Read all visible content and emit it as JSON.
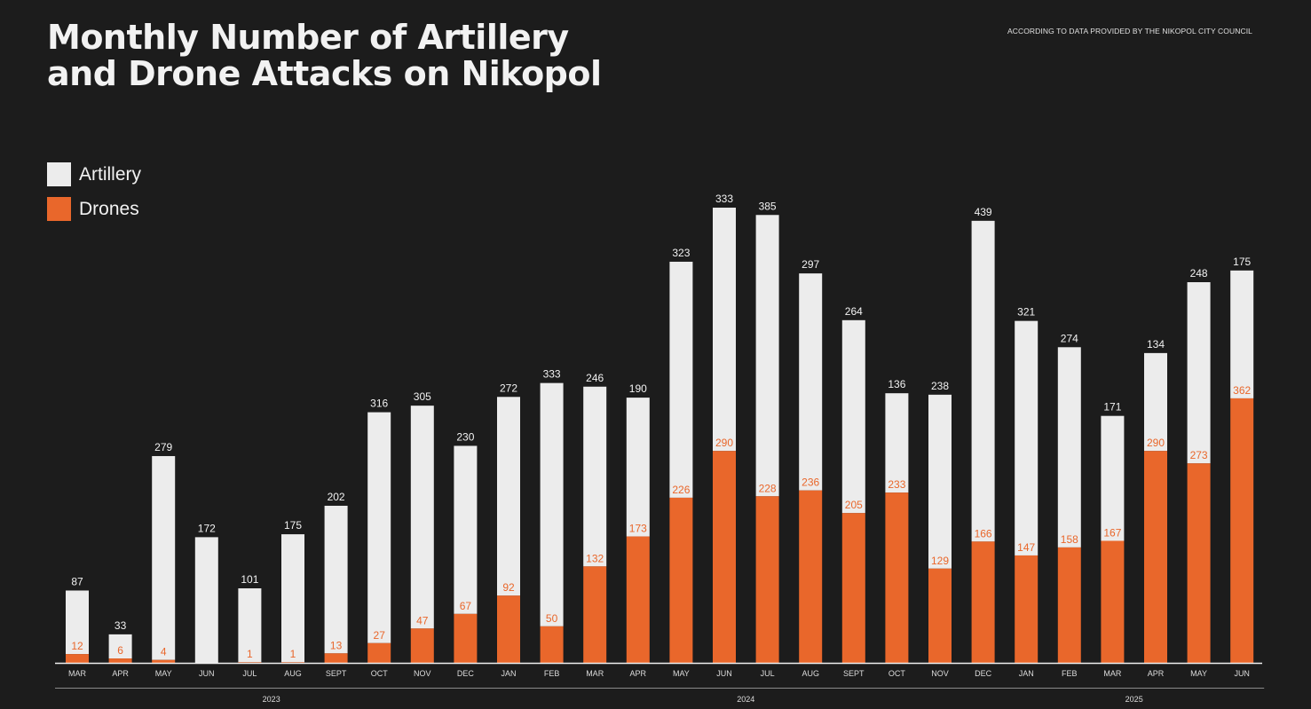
{
  "title_lines": [
    "Monthly Number of Artillery",
    "and Drone Attacks on Nikopol"
  ],
  "source_note": "ACCORDING TO DATA PROVIDED BY THE NIKOPOL CITY COUNCIL",
  "colors": {
    "artillery": "#ececec",
    "drones": "#e9672b",
    "background": "#1c1c1c"
  },
  "chart_data": {
    "type": "bar",
    "stacked": true,
    "title": "Monthly Number of Artillery and Drone Attacks on Nikopol",
    "categories": [
      "MAR",
      "APR",
      "MAY",
      "JUN",
      "JUL",
      "AUG",
      "SEPT",
      "OCT",
      "NOV",
      "DEC",
      "JAN",
      "FEB",
      "MAR",
      "APR",
      "MAY",
      "JUN",
      "JUL",
      "AUG",
      "SEPT",
      "OCT",
      "NOV",
      "DEC",
      "JAN",
      "FEB",
      "MAR",
      "APR",
      "MAY",
      "JUN"
    ],
    "years": [
      {
        "label": "2023",
        "start": 0,
        "end": 9
      },
      {
        "label": "2024",
        "start": 10,
        "end": 21
      },
      {
        "label": "2025",
        "start": 22,
        "end": 27
      }
    ],
    "series": [
      {
        "name": "Artillery",
        "values": [
          87,
          33,
          279,
          172,
          101,
          175,
          202,
          316,
          305,
          230,
          272,
          333,
          246,
          190,
          323,
          333,
          385,
          297,
          264,
          136,
          238,
          439,
          321,
          274,
          171,
          134,
          248,
          175
        ]
      },
      {
        "name": "Drones",
        "values": [
          12,
          6,
          4,
          0,
          1,
          1,
          13,
          27,
          47,
          67,
          92,
          50,
          132,
          173,
          226,
          290,
          228,
          236,
          205,
          233,
          129,
          166,
          147,
          158,
          167,
          290,
          273,
          362
        ]
      }
    ],
    "drone_labels": [
      "12",
      "6",
      "4",
      "",
      "1",
      "1",
      "13",
      "27",
      "47",
      "67",
      "92",
      "50",
      "132",
      "173",
      "226",
      "290",
      "228",
      "236",
      "205",
      "233",
      "129",
      "166",
      "147",
      "158",
      "167",
      "290",
      "273",
      "362"
    ],
    "legend": {
      "position": "top-left",
      "entries": [
        "Artillery",
        "Drones"
      ]
    },
    "ylim": [
      0,
      640
    ],
    "grid": false
  }
}
